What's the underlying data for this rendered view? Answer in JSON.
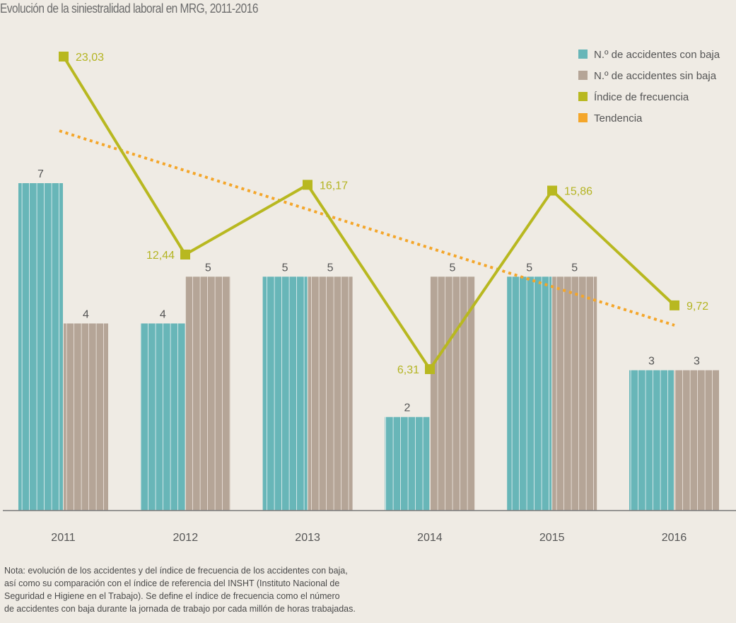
{
  "title": "Evolución de la siniestralidad laboral en MRG, 2011-2016",
  "chart_data": {
    "type": "bar",
    "title": "Evolución de la siniestralidad laboral en MRG, 2011-2016",
    "categories": [
      "2011",
      "2012",
      "2013",
      "2014",
      "2015",
      "2016"
    ],
    "series": [
      {
        "name": "N.º de accidentes con baja",
        "kind": "bar",
        "color": "#68b6b8",
        "values": [
          7,
          4,
          5,
          2,
          5,
          3
        ],
        "labels": [
          "7",
          "4",
          "5",
          "2",
          "5",
          "3"
        ]
      },
      {
        "name": "N.º de accidentes sin baja",
        "kind": "bar",
        "color": "#b5a597",
        "values": [
          4,
          5,
          5,
          5,
          5,
          3
        ],
        "labels": [
          "4",
          "5",
          "5",
          "5",
          "5",
          "3"
        ]
      },
      {
        "name": "Índice de frecuencia",
        "kind": "line",
        "color": "#b8b820",
        "values": [
          23.03,
          12.44,
          16.17,
          6.31,
          15.86,
          9.72
        ],
        "labels": [
          "23,03",
          "12,44",
          "16,17",
          "6,31",
          "15,86",
          "9,72"
        ]
      },
      {
        "name": "Tendencia",
        "kind": "dotted-line",
        "color": "#f4a62a",
        "values": [
          19.34,
          17.46,
          15.57,
          13.69,
          11.81,
          9.92
        ]
      }
    ],
    "bar_axis": {
      "ylim": [
        0,
        7
      ]
    },
    "line_axis": {
      "ylim": [
        0,
        23.03
      ]
    },
    "legend_position": "top-right",
    "grid": false
  },
  "note": [
    "Nota: evolución de los accidentes y del índice de frecuencia de los accidentes con baja,",
    "así como su comparación con el índice de referencia del INSHT (Instituto Nacional de",
    "Seguridad e Higiene en el Trabajo). Se define el índice de frecuencia como el número",
    "de accidentes con baja durante la jornada de trabajo por cada millón de horas trabajadas."
  ]
}
